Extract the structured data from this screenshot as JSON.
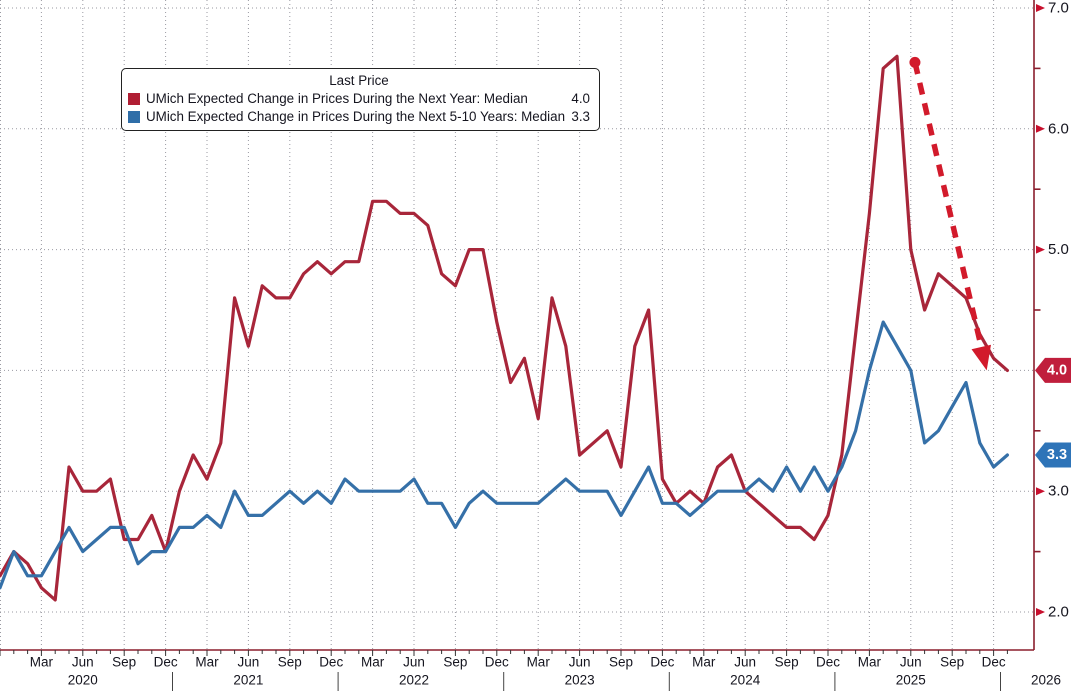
{
  "colors": {
    "red_line": "#A8263A",
    "blue_line": "#3570A8",
    "annotation_red": "#D21A2B",
    "axis_red": "#8B1E2D",
    "tick_arrow_red": "#C8102E",
    "badge_red": "#C01E3C",
    "badge_blue": "#2E74B8",
    "grid": "#9A9AA2",
    "text": "#15151F",
    "month_tick": "#333333"
  },
  "legend": {
    "title": "Last Price",
    "items": [
      {
        "label": "UMich Expected Change in Prices During the Next Year: Median",
        "value": "4.0",
        "color": "#B01E33"
      },
      {
        "label": "UMich Expected Change in Prices During the Next 5-10 Years: Median",
        "value": "3.3",
        "color": "#2F6EA8"
      }
    ]
  },
  "y_axis": {
    "major_ticks": [
      7.0,
      6.0,
      5.0,
      3.0,
      2.0
    ],
    "major_tick_labels": [
      "7.0",
      "6.0",
      "5.0",
      "3.0",
      "2.0"
    ],
    "minor_ticks": [
      6.5,
      5.5,
      4.5,
      3.5,
      2.5
    ],
    "badges": [
      {
        "label": "4.0",
        "value": 4.0,
        "color": "#C01E3C"
      },
      {
        "label": "3.3",
        "value": 3.3,
        "color": "#2E74B8"
      }
    ]
  },
  "x_axis": {
    "quarter_labels": [
      "Mar",
      "Jun",
      "Sep",
      "Dec"
    ],
    "years": [
      "2020",
      "2021",
      "2022",
      "2023",
      "2024",
      "2025"
    ],
    "end_year_label": "2026"
  },
  "chart_data": {
    "type": "line",
    "title": "Last Price",
    "x_start": "2019-12",
    "x_step": "1 month",
    "x_end": "2026-01",
    "ylim": [
      1.7,
      7.05
    ],
    "y_gridlines": [
      2,
      3,
      4,
      5,
      6,
      7
    ],
    "grid": "dotted",
    "legend_position": "top-left",
    "series": [
      {
        "name": "UMich Expected Change in Prices During the Next Year: Median",
        "color": "#A8263A",
        "last_price": 4.0,
        "values": [
          2.3,
          2.5,
          2.4,
          2.2,
          2.1,
          3.2,
          3.0,
          3.0,
          3.1,
          2.6,
          2.6,
          2.8,
          2.5,
          3.0,
          3.3,
          3.1,
          3.4,
          4.6,
          4.2,
          4.7,
          4.6,
          4.6,
          4.8,
          4.9,
          4.8,
          4.9,
          4.9,
          5.4,
          5.4,
          5.3,
          5.3,
          5.2,
          4.8,
          4.7,
          5.0,
          5.0,
          4.4,
          3.9,
          4.1,
          3.6,
          4.6,
          4.2,
          3.3,
          3.4,
          3.5,
          3.2,
          4.2,
          4.5,
          3.1,
          2.9,
          3.0,
          2.9,
          3.2,
          3.3,
          3.0,
          2.9,
          2.8,
          2.7,
          2.7,
          2.6,
          2.8,
          3.3,
          4.3,
          5.3,
          6.5,
          6.6,
          5.0,
          4.5,
          4.8,
          4.7,
          4.6,
          4.3,
          4.1,
          4.0
        ]
      },
      {
        "name": "UMich Expected Change in Prices During the Next 5-10 Years: Median",
        "color": "#3570A8",
        "last_price": 3.3,
        "values": [
          2.2,
          2.5,
          2.3,
          2.3,
          2.5,
          2.7,
          2.5,
          2.6,
          2.7,
          2.7,
          2.4,
          2.5,
          2.5,
          2.7,
          2.7,
          2.8,
          2.7,
          3.0,
          2.8,
          2.8,
          2.9,
          3.0,
          2.9,
          3.0,
          2.9,
          3.1,
          3.0,
          3.0,
          3.0,
          3.0,
          3.1,
          2.9,
          2.9,
          2.7,
          2.9,
          3.0,
          2.9,
          2.9,
          2.9,
          2.9,
          3.0,
          3.1,
          3.0,
          3.0,
          3.0,
          2.8,
          3.0,
          3.2,
          2.9,
          2.9,
          2.8,
          2.9,
          3.0,
          3.0,
          3.0,
          3.1,
          3.0,
          3.2,
          3.0,
          3.2,
          3.0,
          3.2,
          3.5,
          4.0,
          4.4,
          4.2,
          4.0,
          3.4,
          3.5,
          3.7,
          3.9,
          3.4,
          3.2,
          3.3
        ]
      }
    ],
    "annotation": {
      "type": "dashed-arrow",
      "from": {
        "month_index": 66.3,
        "value": 6.55
      },
      "to": {
        "month_index": 71.5,
        "value": 4.0
      }
    }
  }
}
